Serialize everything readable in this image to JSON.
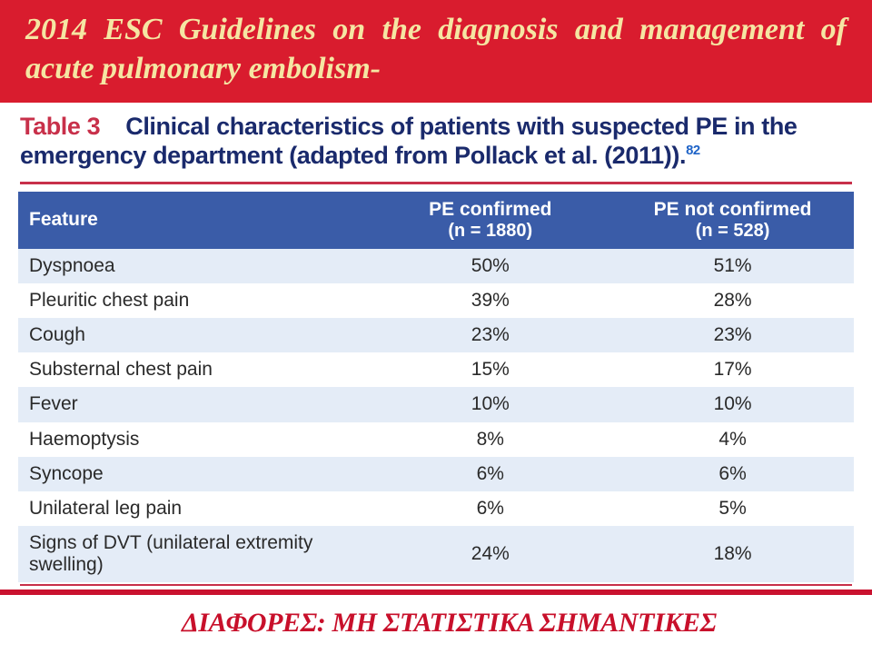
{
  "header": {
    "title": "2014 ESC Guidelines on the diagnosis and management of acute pulmonary embolism-"
  },
  "table": {
    "label": "Table 3",
    "caption_rest": "Clinical characteristics of patients with suspected PE in the emergency department (adapted from Pollack et al. (2011)).",
    "ref": "82",
    "columns": {
      "feature": "Feature",
      "confirmed": "PE confirmed",
      "confirmed_n": "(n = 1880)",
      "notconfirmed": "PE not confirmed",
      "notconfirmed_n": "(n = 528)"
    },
    "rows": [
      {
        "feature": "Dyspnoea",
        "c": "50%",
        "nc": "51%"
      },
      {
        "feature": "Pleuritic chest pain",
        "c": "39%",
        "nc": "28%"
      },
      {
        "feature": "Cough",
        "c": "23%",
        "nc": "23%"
      },
      {
        "feature": "Substernal chest pain",
        "c": "15%",
        "nc": "17%"
      },
      {
        "feature": "Fever",
        "c": "10%",
        "nc": "10%"
      },
      {
        "feature": "Haemoptysis",
        "c": "8%",
        "nc": "4%"
      },
      {
        "feature": "Syncope",
        "c": "6%",
        "nc": "6%"
      },
      {
        "feature": "Unilateral leg pain",
        "c": "6%",
        "nc": "5%"
      },
      {
        "feature": "Signs of DVT (unilateral extremity swelling)",
        "c": "24%",
        "nc": "18%"
      }
    ]
  },
  "footer": {
    "note": "ΔΙΑΦΟΡΕΣ: ΜΗ  ΣΤΑΤΙΣΤΙΚΑ  ΣΗΜΑΝΤΙΚΕΣ"
  },
  "colors": {
    "header_bg": "#d91c2e",
    "header_fg": "#f5e6a3",
    "thead_bg": "#3a5ca8",
    "row_alt": "#e4ecf7",
    "rule": "#c8304a",
    "caption": "#1a2a6c",
    "footer_text": "#c8102b"
  }
}
